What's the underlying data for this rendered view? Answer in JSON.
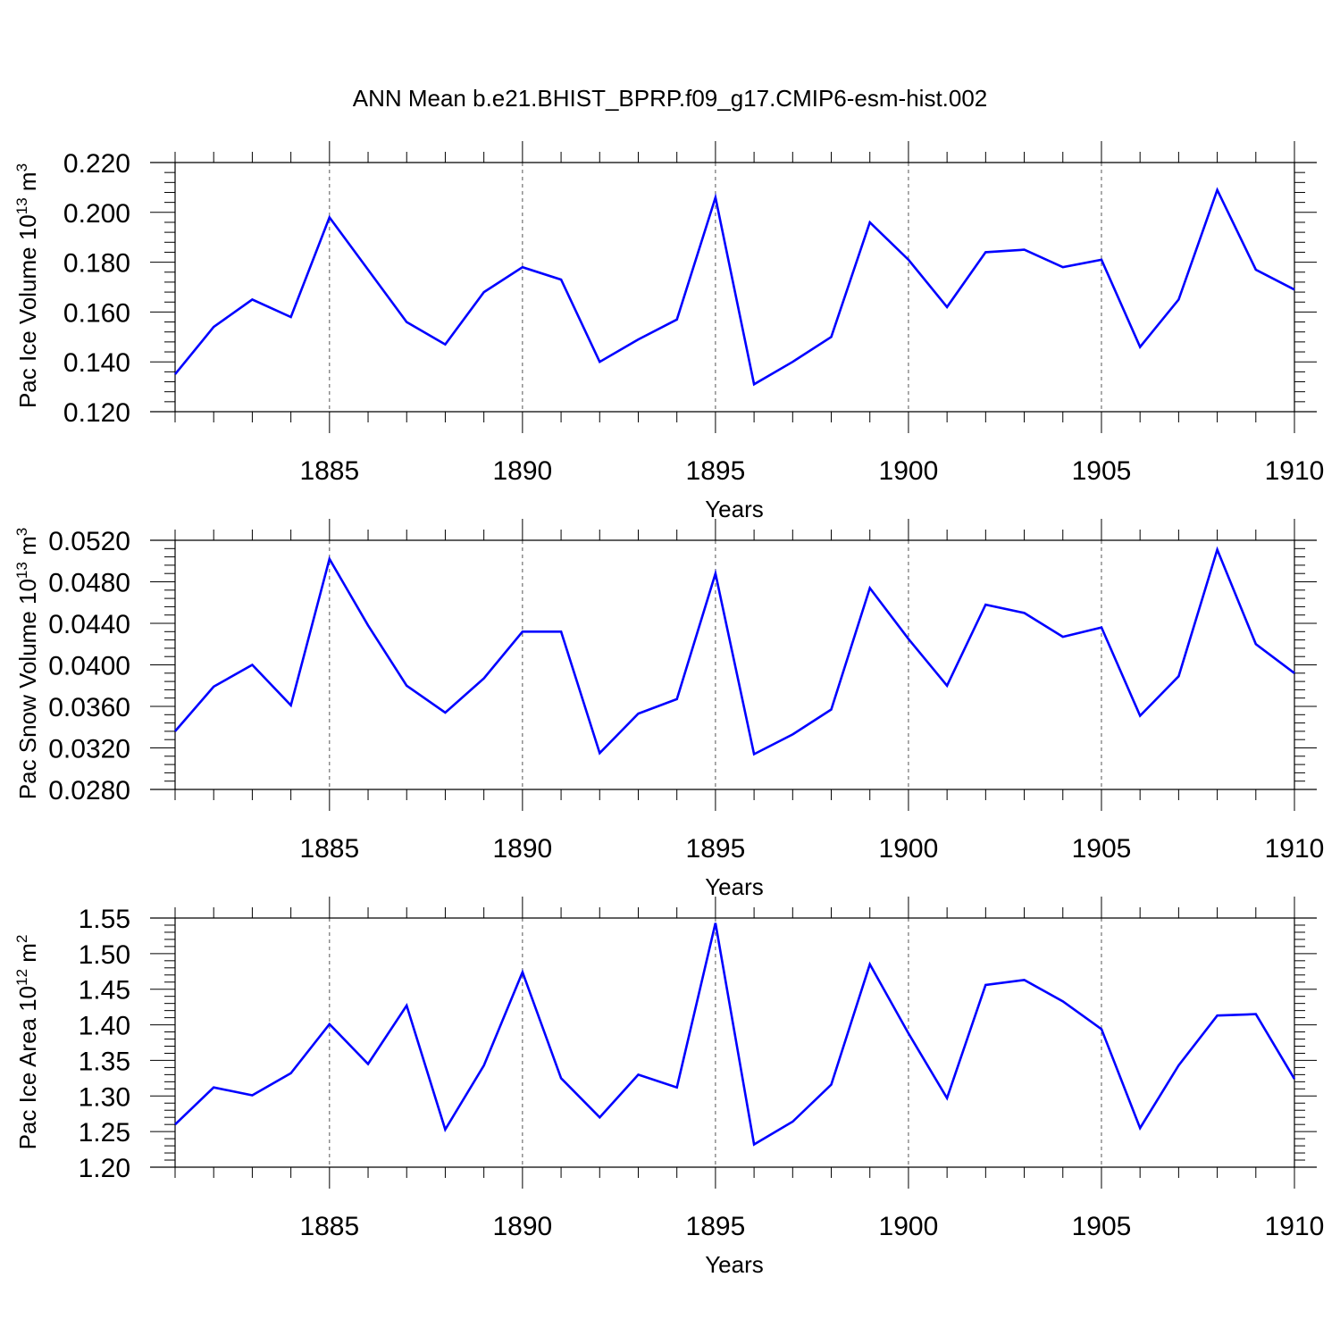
{
  "title": "ANN Mean b.e21.BHIST_BPRP.f09_g17.CMIP6-esm-hist.002",
  "colors": {
    "series": "#0000ff",
    "axis": "#000000",
    "grid": "#555555"
  },
  "chart_data": [
    {
      "type": "line",
      "ylabel": {
        "prefix": "Pac Ice Volume 10",
        "exp": "13",
        "unit": " m",
        "unit_exp": "3"
      },
      "xlabel": "Years",
      "xlim": [
        1881,
        1910
      ],
      "ylim": [
        0.12,
        0.22
      ],
      "yticks": [
        "0.120",
        "0.140",
        "0.160",
        "0.180",
        "0.200",
        "0.220"
      ],
      "xticks": [
        "1885",
        "1890",
        "1895",
        "1900",
        "1905",
        "1910"
      ],
      "grid": "dashed vertical lines at labeled years",
      "x": [
        1881,
        1882,
        1883,
        1884,
        1885,
        1886,
        1887,
        1888,
        1889,
        1890,
        1891,
        1892,
        1893,
        1894,
        1895,
        1896,
        1897,
        1898,
        1899,
        1900,
        1901,
        1902,
        1903,
        1904,
        1905,
        1906,
        1907,
        1908,
        1909,
        1910
      ],
      "values": [
        0.135,
        0.154,
        0.165,
        0.158,
        0.198,
        0.177,
        0.156,
        0.147,
        0.168,
        0.178,
        0.173,
        0.14,
        0.149,
        0.157,
        0.206,
        0.131,
        0.14,
        0.15,
        0.196,
        0.181,
        0.162,
        0.184,
        0.185,
        0.178,
        0.181,
        0.146,
        0.165,
        0.209,
        0.177,
        0.169
      ]
    },
    {
      "type": "line",
      "ylabel": {
        "prefix": "Pac Snow Volume 10",
        "exp": "13",
        "unit": " m",
        "unit_exp": "3"
      },
      "xlabel": "Years",
      "xlim": [
        1881,
        1910
      ],
      "ylim": [
        0.028,
        0.052
      ],
      "yticks": [
        "0.0280",
        "0.0320",
        "0.0360",
        "0.0400",
        "0.0440",
        "0.0480",
        "0.0520"
      ],
      "xticks": [
        "1885",
        "1890",
        "1895",
        "1900",
        "1905",
        "1910"
      ],
      "grid": "dashed vertical lines at labeled years",
      "x": [
        1881,
        1882,
        1883,
        1884,
        1885,
        1886,
        1887,
        1888,
        1889,
        1890,
        1891,
        1892,
        1893,
        1894,
        1895,
        1896,
        1897,
        1898,
        1899,
        1900,
        1901,
        1902,
        1903,
        1904,
        1905,
        1906,
        1907,
        1908,
        1909,
        1910
      ],
      "values": [
        0.0336,
        0.0379,
        0.04,
        0.0361,
        0.0502,
        0.0438,
        0.038,
        0.0354,
        0.0387,
        0.0432,
        0.0432,
        0.0315,
        0.0353,
        0.0367,
        0.0488,
        0.0314,
        0.0333,
        0.0357,
        0.0474,
        0.0425,
        0.038,
        0.0458,
        0.045,
        0.0427,
        0.0436,
        0.0351,
        0.0389,
        0.0511,
        0.042,
        0.0392
      ]
    },
    {
      "type": "line",
      "ylabel": {
        "prefix": "Pac Ice Area 10",
        "exp": "12",
        "unit": " m",
        "unit_exp": "2"
      },
      "xlabel": "Years",
      "xlim": [
        1881,
        1910
      ],
      "ylim": [
        1.2,
        1.55
      ],
      "yticks": [
        "1.20",
        "1.25",
        "1.30",
        "1.35",
        "1.40",
        "1.45",
        "1.50",
        "1.55"
      ],
      "xticks": [
        "1885",
        "1890",
        "1895",
        "1900",
        "1905",
        "1910"
      ],
      "grid": "dashed vertical lines at labeled years",
      "x": [
        1881,
        1882,
        1883,
        1884,
        1885,
        1886,
        1887,
        1888,
        1889,
        1890,
        1891,
        1892,
        1893,
        1894,
        1895,
        1896,
        1897,
        1898,
        1899,
        1900,
        1901,
        1902,
        1903,
        1904,
        1905,
        1906,
        1907,
        1908,
        1909,
        1910
      ],
      "values": [
        1.26,
        1.312,
        1.301,
        1.332,
        1.401,
        1.345,
        1.427,
        1.253,
        1.343,
        1.474,
        1.325,
        1.27,
        1.33,
        1.312,
        1.543,
        1.232,
        1.264,
        1.316,
        1.485,
        1.388,
        1.297,
        1.456,
        1.463,
        1.433,
        1.394,
        1.255,
        1.343,
        1.413,
        1.415,
        1.324
      ]
    }
  ]
}
